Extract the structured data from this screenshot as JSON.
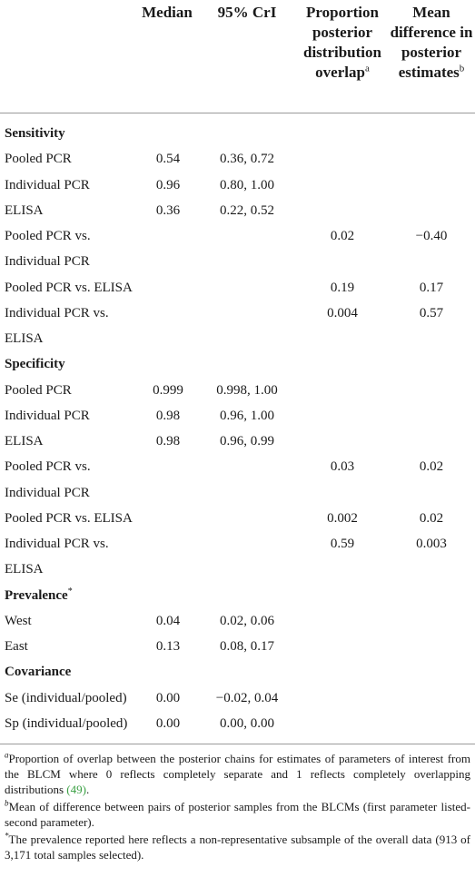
{
  "headers": {
    "median": "Median",
    "cri": "95% CrI",
    "proportion": [
      "Proportion",
      "posterior",
      "distribution",
      "overlap"
    ],
    "proportion_sup": "a",
    "mean": [
      "Mean",
      "difference in",
      "posterior",
      "estimates"
    ],
    "mean_sup": "b"
  },
  "rows": [
    {
      "type": "section",
      "label": "Sensitivity"
    },
    {
      "label": "Pooled PCR",
      "median": "0.54",
      "cri": "0.36, 0.72"
    },
    {
      "label": "Individual PCR",
      "median": "0.96",
      "cri": "0.80, 1.00"
    },
    {
      "label": "ELISA",
      "median": "0.36",
      "cri": "0.22, 0.52"
    },
    {
      "label": "Pooled PCR vs.",
      "prop": "0.02",
      "mean": "−0.40"
    },
    {
      "label": "Individual PCR"
    },
    {
      "label": "Pooled PCR vs. ELISA",
      "prop": "0.19",
      "mean": "0.17"
    },
    {
      "label": "Individual PCR vs.",
      "prop": "0.004",
      "mean": "0.57"
    },
    {
      "label": "ELISA"
    },
    {
      "type": "section",
      "label": "Specificity"
    },
    {
      "label": "Pooled PCR",
      "median": "0.999",
      "cri": "0.998, 1.00"
    },
    {
      "label": "Individual PCR",
      "median": "0.98",
      "cri": "0.96, 1.00"
    },
    {
      "label": "ELISA",
      "median": "0.98",
      "cri": "0.96, 0.99"
    },
    {
      "label": "Pooled PCR vs.",
      "prop": "0.03",
      "mean": "0.02"
    },
    {
      "label": "Individual PCR"
    },
    {
      "label": "Pooled PCR vs. ELISA",
      "prop": "0.002",
      "mean": "0.02"
    },
    {
      "label": "Individual PCR vs.",
      "prop": "0.59",
      "mean": "0.003"
    },
    {
      "label": "ELISA"
    },
    {
      "type": "section",
      "label": "Prevalence",
      "sup": "*"
    },
    {
      "label": "West",
      "median": "0.04",
      "cri": "0.02, 0.06"
    },
    {
      "label": "East",
      "median": "0.13",
      "cri": "0.08, 0.17"
    },
    {
      "type": "section",
      "label": "Covariance"
    },
    {
      "label": "Se (individual/pooled)",
      "median": "0.00",
      "cri": "−0.02, 0.04"
    },
    {
      "label": "Sp (individual/pooled)",
      "median": "0.00",
      "cri": "0.00, 0.00"
    }
  ],
  "footnotes": [
    {
      "mark": "a",
      "text": "Proportion of overlap between the posterior chains for estimates of parameters of interest from the BLCM where 0 reflects completely separate and 1 reflects completely overlapping distributions ",
      "ref": "(49)",
      "tail": "."
    },
    {
      "mark": "b",
      "text": "Mean of difference between pairs of posterior samples from the BLCMs (first parameter listed-second parameter).",
      "ref": "",
      "tail": ""
    },
    {
      "mark": "*",
      "text": "The prevalence reported here reflects a non-representative subsample of the overall data (913 of 3,171 total samples selected).",
      "ref": "",
      "tail": ""
    }
  ]
}
